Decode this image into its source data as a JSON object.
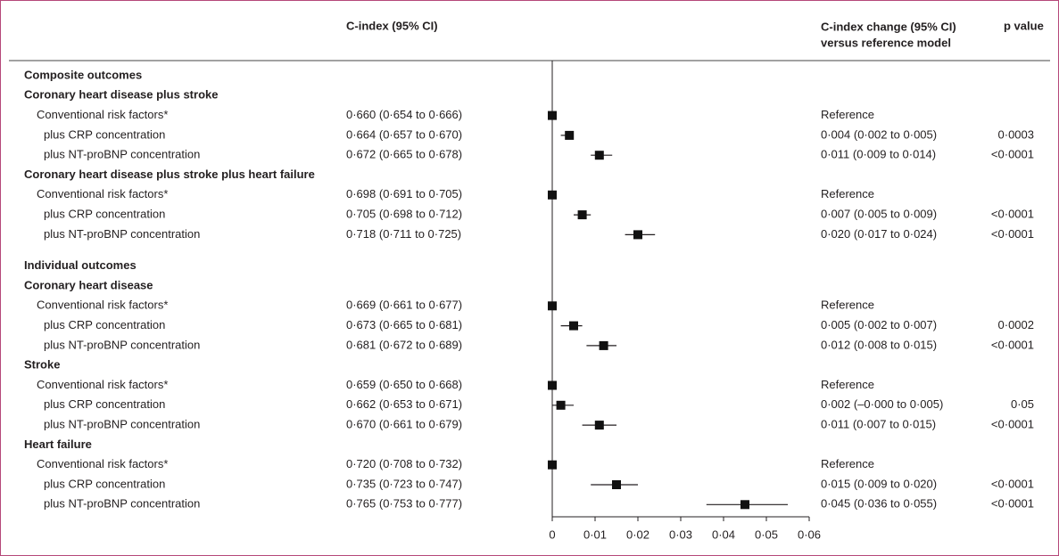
{
  "chart_data": {
    "type": "forest",
    "columns": {
      "cindex": "C-index (95% CI)",
      "change": [
        "C-index change (95% CI)",
        "versus reference model"
      ],
      "p": "p value"
    },
    "xlim": [
      0,
      0.06
    ],
    "xticks": [
      0,
      {
        "value": 0.01,
        "label": "0·01"
      },
      {
        "value": 0.02,
        "label": "0·02"
      },
      {
        "value": 0.03,
        "label": "0·03"
      },
      {
        "value": 0.04,
        "label": "0·04"
      },
      {
        "value": 0.05,
        "label": "0·05"
      },
      {
        "value": 0.06,
        "label": "0·06"
      }
    ],
    "groups": [
      {
        "title": "Composite outcomes",
        "outcomes": [
          {
            "name": "Coronary heart disease plus stroke",
            "rows": [
              {
                "label": "Conventional risk factors*",
                "cindex": "0·660 (0·654 to 0·666)",
                "change": "Reference",
                "value": 0
              },
              {
                "label": "plus CRP concentration",
                "cindex": "0·664 (0·657 to 0·670)",
                "change": "0·004 (0·002 to 0·005)",
                "p": "0·0003",
                "value": 0.004,
                "lower": 0.002,
                "upper": 0.005
              },
              {
                "label": "plus NT-proBNP concentration",
                "cindex": "0·672 (0·665 to 0·678)",
                "change": "0·011 (0·009 to 0·014)",
                "p": "<0·0001",
                "value": 0.011,
                "lower": 0.009,
                "upper": 0.014
              }
            ]
          },
          {
            "name": "Coronary heart disease plus stroke plus heart failure",
            "rows": [
              {
                "label": "Conventional risk factors*",
                "cindex": "0·698 (0·691 to 0·705)",
                "change": "Reference",
                "value": 0
              },
              {
                "label": "plus CRP concentration",
                "cindex": "0·705 (0·698 to 0·712)",
                "change": "0·007 (0·005 to 0·009)",
                "p": "<0·0001",
                "value": 0.007,
                "lower": 0.005,
                "upper": 0.009
              },
              {
                "label": "plus NT-proBNP concentration",
                "cindex": "0·718 (0·711 to 0·725)",
                "change": "0·020 (0·017 to 0·024)",
                "p": "<0·0001",
                "value": 0.02,
                "lower": 0.017,
                "upper": 0.024
              }
            ]
          }
        ]
      },
      {
        "title": "Individual outcomes",
        "outcomes": [
          {
            "name": "Coronary heart disease",
            "rows": [
              {
                "label": "Conventional risk factors*",
                "cindex": "0·669 (0·661 to 0·677)",
                "change": "Reference",
                "value": 0
              },
              {
                "label": "plus CRP concentration",
                "cindex": "0·673 (0·665 to 0·681)",
                "change": "0·005 (0·002 to 0·007)",
                "p": "0·0002",
                "value": 0.005,
                "lower": 0.002,
                "upper": 0.007
              },
              {
                "label": "plus NT-proBNP concentration",
                "cindex": "0·681 (0·672 to 0·689)",
                "change": "0·012 (0·008 to 0·015)",
                "p": "<0·0001",
                "value": 0.012,
                "lower": 0.008,
                "upper": 0.015
              }
            ]
          },
          {
            "name": "Stroke",
            "rows": [
              {
                "label": "Conventional risk factors*",
                "cindex": "0·659 (0·650 to 0·668)",
                "change": "Reference",
                "value": 0
              },
              {
                "label": "plus CRP concentration",
                "cindex": "0·662 (0·653 to 0·671)",
                "change": "0·002 (–0·000 to 0·005)",
                "p": "0·05",
                "value": 0.002,
                "lower": 0,
                "upper": 0.005
              },
              {
                "label": "plus NT-proBNP concentration",
                "cindex": "0·670 (0·661 to 0·679)",
                "change": "0·011 (0·007 to 0·015)",
                "p": "<0·0001",
                "value": 0.011,
                "lower": 0.007,
                "upper": 0.015
              }
            ]
          },
          {
            "name": "Heart failure",
            "rows": [
              {
                "label": "Conventional risk factors*",
                "cindex": "0·720 (0·708 to 0·732)",
                "change": "Reference",
                "value": 0
              },
              {
                "label": "plus CRP concentration",
                "cindex": "0·735 (0·723 to 0·747)",
                "change": "0·015 (0·009 to 0·020)",
                "p": "<0·0001",
                "value": 0.015,
                "lower": 0.009,
                "upper": 0.02
              },
              {
                "label": "plus NT-proBNP concentration",
                "cindex": "0·765 (0·753 to 0·777)",
                "change": "0·045 (0·036 to 0·055)",
                "p": "<0·0001",
                "value": 0.045,
                "lower": 0.036,
                "upper": 0.055
              }
            ]
          }
        ]
      }
    ]
  }
}
